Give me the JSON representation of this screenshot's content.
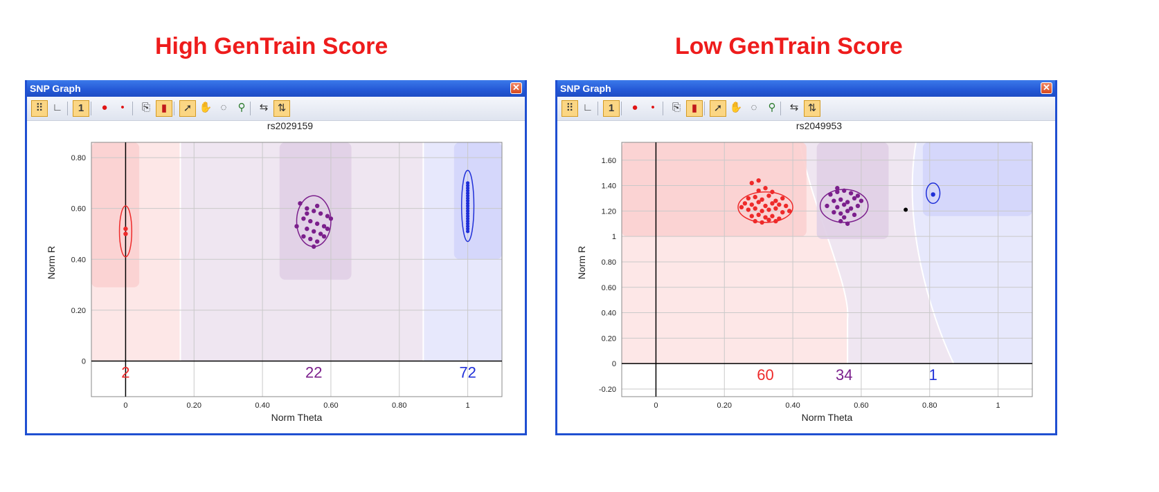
{
  "headings": {
    "left": "High GenTrain Score",
    "right": "Low GenTrain Score"
  },
  "colors": {
    "heading": "#ee1c1c",
    "aa": "#ee2a2a",
    "ab": "#7b1f8c",
    "bb": "#1f2fd8",
    "window_border": "#1f4fd1"
  },
  "toolbar_icons": [
    "scatter-plot-icon",
    "axis-chart-icon",
    "one-icon",
    "large-dot-icon",
    "small-dot-icon",
    "copy-icon",
    "color-scale-icon",
    "pointer-icon",
    "hand-icon",
    "lasso-icon",
    "zoom-icon",
    "fit-horizontal-icon",
    "fit-vertical-icon"
  ],
  "windows": [
    {
      "title": "SNP Graph",
      "snp": "rs2029159",
      "chart_data": {
        "type": "scatter",
        "xlabel": "Norm Theta",
        "ylabel": "Norm R",
        "xlim": [
          -0.1,
          1.1
        ],
        "ylim": [
          -0.14,
          0.86
        ],
        "x_ticks": [
          "0",
          "0.20",
          "0.40",
          "0.60",
          "0.80",
          "1"
        ],
        "y_ticks": [
          "0",
          "0.20",
          "0.40",
          "0.60",
          "0.80"
        ],
        "counts": [
          {
            "value": "2",
            "x": 0,
            "color": "aa"
          },
          {
            "value": "22",
            "x": 0.55,
            "color": "ab"
          },
          {
            "value": "72",
            "x": 1.0,
            "color": "bb"
          }
        ],
        "boundaries": [
          0.16,
          0.87
        ],
        "highlight_boxes": [
          {
            "x": [
              -0.1,
              0.04
            ],
            "y": [
              0.29,
              0.86
            ],
            "color": "aa"
          },
          {
            "x": [
              0.45,
              0.66
            ],
            "y": [
              0.32,
              0.86
            ],
            "color": "ab"
          },
          {
            "x": [
              0.96,
              1.1
            ],
            "y": [
              0.4,
              0.86
            ],
            "color": "bb"
          }
        ],
        "ellipses": [
          {
            "cx": 0,
            "cy": 0.51,
            "rx": 0.018,
            "ry": 0.1,
            "color": "aa"
          },
          {
            "cx": 0.55,
            "cy": 0.55,
            "rx": 0.05,
            "ry": 0.1,
            "color": "ab"
          },
          {
            "cx": 1.0,
            "cy": 0.61,
            "rx": 0.018,
            "ry": 0.14,
            "color": "bb"
          }
        ],
        "series": [
          {
            "color": "aa",
            "x": [
              0,
              0
            ],
            "y": [
              0.52,
              0.5
            ]
          },
          {
            "color": "ab",
            "x": [
              0.51,
              0.53,
              0.55,
              0.57,
              0.59,
              0.52,
              0.54,
              0.56,
              0.58,
              0.6,
              0.5,
              0.53,
              0.55,
              0.57,
              0.59,
              0.52,
              0.54,
              0.56,
              0.58,
              0.55,
              0.53,
              0.56
            ],
            "y": [
              0.62,
              0.6,
              0.59,
              0.58,
              0.57,
              0.56,
              0.55,
              0.54,
              0.53,
              0.56,
              0.53,
              0.52,
              0.51,
              0.5,
              0.52,
              0.49,
              0.48,
              0.47,
              0.49,
              0.45,
              0.58,
              0.61
            ]
          },
          {
            "color": "bb",
            "x": [
              1,
              1,
              1,
              1,
              1,
              1,
              1,
              1,
              1,
              1,
              1,
              1,
              1,
              1,
              1,
              1,
              1,
              1,
              1,
              1
            ],
            "y": [
              0.7,
              0.69,
              0.68,
              0.67,
              0.66,
              0.65,
              0.64,
              0.63,
              0.62,
              0.61,
              0.6,
              0.59,
              0.58,
              0.57,
              0.56,
              0.55,
              0.54,
              0.53,
              0.52,
              0.51
            ]
          }
        ],
        "singletons": []
      }
    },
    {
      "title": "SNP Graph",
      "snp": "rs2049953",
      "chart_data": {
        "type": "scatter",
        "xlabel": "Norm Theta",
        "ylabel": "Norm R",
        "xlim": [
          -0.1,
          1.1
        ],
        "ylim": [
          -0.26,
          1.74
        ],
        "x_ticks": [
          "0",
          "0.20",
          "0.40",
          "0.60",
          "0.80",
          "1"
        ],
        "y_ticks": [
          "-0.20",
          "0",
          "0.20",
          "0.40",
          "0.60",
          "0.80",
          "1",
          "1.20",
          "1.40",
          "1.60"
        ],
        "counts": [
          {
            "value": "60",
            "x": 0.32,
            "color": "aa"
          },
          {
            "value": "34",
            "x": 0.55,
            "color": "ab"
          },
          {
            "value": "1",
            "x": 0.81,
            "color": "bb"
          }
        ],
        "boundaries": [],
        "highlight_boxes": [
          {
            "x": [
              -0.1,
              0.44
            ],
            "y": [
              1.0,
              1.74
            ],
            "color": "aa"
          },
          {
            "x": [
              0.47,
              0.68
            ],
            "y": [
              0.98,
              1.74
            ],
            "color": "ab"
          },
          {
            "x": [
              0.78,
              1.1
            ],
            "y": [
              1.16,
              1.74
            ],
            "color": "bb"
          }
        ],
        "ellipses": [
          {
            "cx": 0.32,
            "cy": 1.23,
            "rx": 0.08,
            "ry": 0.12,
            "color": "aa"
          },
          {
            "cx": 0.55,
            "cy": 1.24,
            "rx": 0.07,
            "ry": 0.13,
            "color": "ab"
          },
          {
            "cx": 0.81,
            "cy": 1.34,
            "rx": 0.02,
            "ry": 0.08,
            "color": "bb"
          }
        ],
        "series": [
          {
            "color": "aa",
            "x": [
              0.27,
              0.29,
              0.31,
              0.33,
              0.35,
              0.37,
              0.26,
              0.28,
              0.3,
              0.32,
              0.34,
              0.36,
              0.38,
              0.27,
              0.29,
              0.31,
              0.33,
              0.35,
              0.37,
              0.28,
              0.3,
              0.32,
              0.34,
              0.36,
              0.29,
              0.31,
              0.33,
              0.35,
              0.3,
              0.32,
              0.34,
              0.28,
              0.3,
              0.25,
              0.39
            ],
            "y": [
              1.3,
              1.31,
              1.29,
              1.32,
              1.28,
              1.3,
              1.26,
              1.25,
              1.27,
              1.24,
              1.26,
              1.25,
              1.24,
              1.21,
              1.22,
              1.2,
              1.21,
              1.22,
              1.19,
              1.16,
              1.17,
              1.15,
              1.16,
              1.14,
              1.12,
              1.11,
              1.13,
              1.12,
              1.36,
              1.38,
              1.35,
              1.42,
              1.44,
              1.23,
              1.2
            ]
          },
          {
            "color": "ab",
            "x": [
              0.51,
              0.53,
              0.55,
              0.57,
              0.59,
              0.52,
              0.54,
              0.56,
              0.58,
              0.6,
              0.5,
              0.53,
              0.55,
              0.57,
              0.59,
              0.52,
              0.54,
              0.56,
              0.58,
              0.54,
              0.56,
              0.53,
              0.55
            ],
            "y": [
              1.33,
              1.35,
              1.36,
              1.34,
              1.32,
              1.28,
              1.29,
              1.27,
              1.3,
              1.28,
              1.24,
              1.23,
              1.25,
              1.22,
              1.24,
              1.19,
              1.18,
              1.2,
              1.17,
              1.12,
              1.1,
              1.38,
              1.15
            ]
          },
          {
            "color": "bb",
            "x": [
              0.81
            ],
            "y": [
              1.33
            ]
          }
        ],
        "singletons": [
          {
            "x": 0.73,
            "y": 1.21
          }
        ]
      }
    }
  ]
}
